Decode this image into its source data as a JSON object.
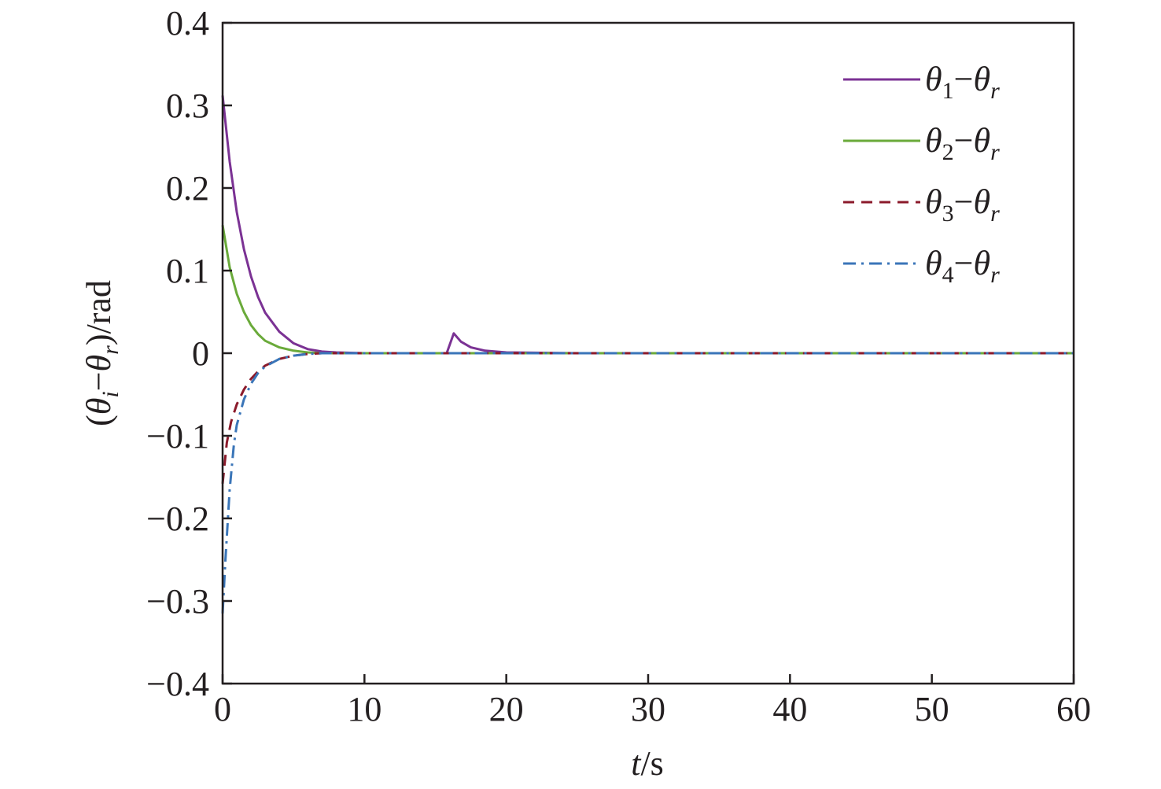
{
  "chart_data": {
    "type": "line",
    "xlabel": {
      "var": "t",
      "unit": "/s"
    },
    "ylabel": {
      "open": "(",
      "var1": "θ",
      "sub1": "i",
      "minus": "−",
      "var2": "θ",
      "sub2": "r",
      "close": ")/rad"
    },
    "xlim": [
      0,
      60
    ],
    "ylim": [
      -0.4,
      0.4
    ],
    "xticks": [
      0,
      10,
      20,
      30,
      40,
      50,
      60
    ],
    "xtick_labels": [
      "0",
      "10",
      "20",
      "30",
      "40",
      "50",
      "60"
    ],
    "yticks": [
      0.4,
      0.3,
      0.2,
      0.1,
      0,
      -0.1,
      -0.2,
      -0.3,
      -0.4
    ],
    "ytick_labels": [
      "0.4",
      "0.3",
      "0.2",
      "0.1",
      "0",
      "−0.1",
      "−0.2",
      "−0.3",
      "−0.4"
    ],
    "grid": false,
    "legend_position": "top-right",
    "series": [
      {
        "name": "θ1−θr",
        "legend": {
          "a": "θ",
          "a_sub": "1",
          "minus": "−",
          "b": "θ",
          "b_sub": "r"
        },
        "color": "#7b3294",
        "dash": "solid",
        "x": [
          0,
          0.5,
          1,
          1.5,
          2,
          2.5,
          3,
          4,
          5,
          6,
          7,
          8,
          10,
          12,
          15,
          15.8,
          16.3,
          16.8,
          17.5,
          18.5,
          20,
          25,
          30,
          40,
          50,
          60
        ],
        "y": [
          0.312,
          0.232,
          0.171,
          0.126,
          0.093,
          0.068,
          0.049,
          0.026,
          0.012,
          0.005,
          0.002,
          0.001,
          0,
          0,
          0,
          0,
          0.024,
          0.014,
          0.007,
          0.003,
          0.001,
          0,
          0,
          0,
          0,
          0
        ]
      },
      {
        "name": "θ2−θr",
        "legend": {
          "a": "θ",
          "a_sub": "2",
          "minus": "−",
          "b": "θ",
          "b_sub": "r"
        },
        "color": "#6aaa3a",
        "dash": "solid",
        "x": [
          0,
          0.5,
          1,
          1.5,
          2,
          2.5,
          3,
          4,
          5,
          6,
          7,
          8,
          10,
          20,
          30,
          40,
          50,
          60
        ],
        "y": [
          0.155,
          0.104,
          0.072,
          0.05,
          0.034,
          0.023,
          0.015,
          0.007,
          0.003,
          0.001,
          0,
          0,
          0,
          0,
          0,
          0,
          0,
          0
        ],
        "note": ""
      },
      {
        "name": "θ3−θr",
        "legend": {
          "a": "θ",
          "a_sub": "3",
          "minus": "−",
          "b": "θ",
          "b_sub": "r"
        },
        "color": "#8b1a2b",
        "dash": "dashed",
        "x": [
          0,
          0.3,
          0.6,
          1,
          1.5,
          2,
          2.5,
          3,
          4,
          5,
          6,
          7,
          8,
          10,
          20,
          30,
          40,
          50,
          60
        ],
        "y": [
          -0.158,
          -0.108,
          -0.083,
          -0.062,
          -0.044,
          -0.031,
          -0.022,
          -0.015,
          -0.007,
          -0.003,
          -0.001,
          0,
          0,
          0,
          0,
          0,
          0,
          0,
          0
        ]
      },
      {
        "name": "θ4−θr",
        "legend": {
          "a": "θ",
          "a_sub": "4",
          "minus": "−",
          "b": "θ",
          "b_sub": "r"
        },
        "color": "#3a75b8",
        "dash": "dashdot",
        "x": [
          0,
          0.2,
          0.5,
          0.8,
          1,
          1.5,
          2,
          2.5,
          3,
          4,
          5,
          6,
          7,
          8,
          10,
          20,
          30,
          40,
          50,
          60
        ],
        "y": [
          -0.315,
          -0.25,
          -0.165,
          -0.11,
          -0.087,
          -0.056,
          -0.037,
          -0.024,
          -0.016,
          -0.007,
          -0.003,
          -0.001,
          0,
          0,
          0,
          0,
          0,
          0,
          0,
          0
        ]
      }
    ]
  }
}
